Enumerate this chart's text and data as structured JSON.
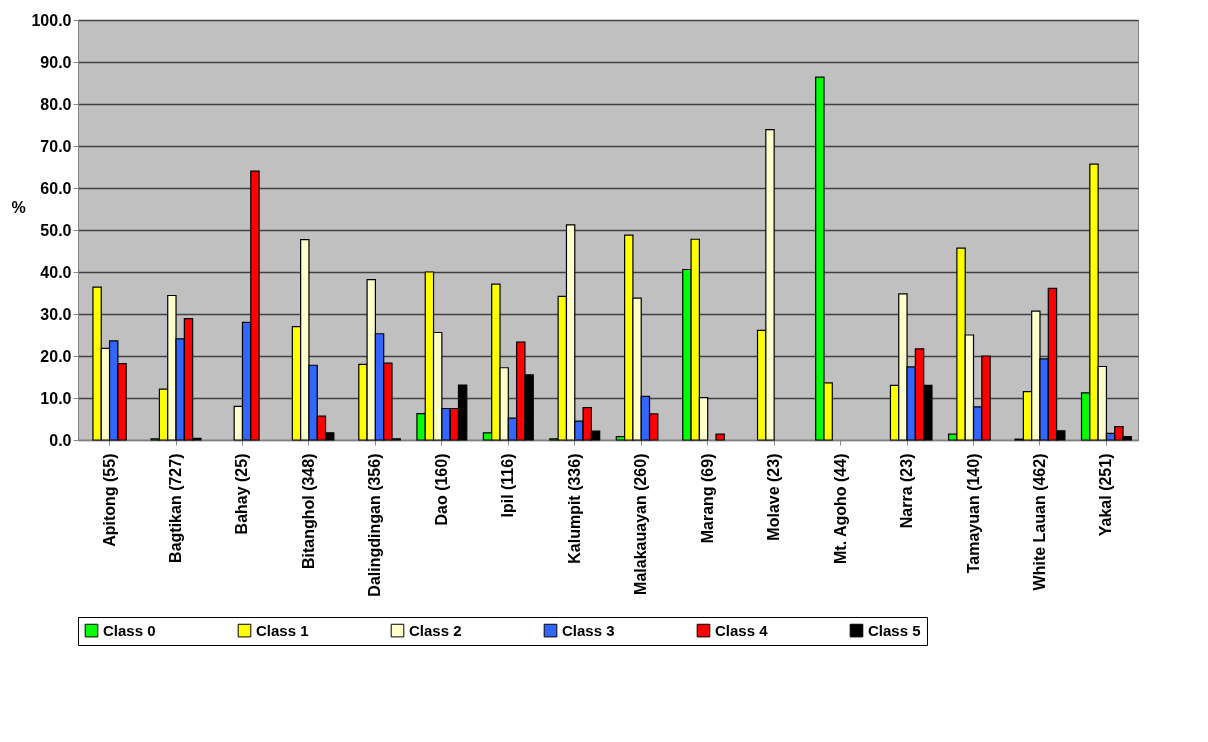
{
  "chart_data": {
    "type": "bar",
    "ylabel": "%",
    "categories": [
      "Apitong (55)",
      "Bagtikan (727)",
      "Bahay (25)",
      "Bitanghol (348)",
      "Dalingdingan (356)",
      "Dao (160)",
      "Ipil (116)",
      "Kalumpit (336)",
      "Malakauayan (260)",
      "Marang (69)",
      "Molave (23)",
      "Mt. Agoho (44)",
      "Narra (23)",
      "Tamayuan (140)",
      "White Lauan (462)",
      "Yakal (251)"
    ],
    "series": [
      {
        "name": "Class 0",
        "color": "#00ff00",
        "values": [
          null,
          0.3,
          null,
          null,
          null,
          6.3,
          1.7,
          0.3,
          0.8,
          40.6,
          null,
          86.4,
          null,
          1.4,
          0.2,
          11.2
        ]
      },
      {
        "name": "Class 1",
        "color": "#ffff00",
        "values": [
          36.4,
          12.1,
          null,
          27.0,
          18.0,
          40.0,
          37.1,
          34.2,
          48.8,
          47.8,
          26.1,
          13.6,
          13.0,
          45.7,
          11.5,
          65.7
        ]
      },
      {
        "name": "Class 2",
        "color": "#ffffcc",
        "values": [
          21.8,
          34.4,
          8.0,
          47.7,
          38.2,
          25.6,
          17.2,
          51.2,
          33.8,
          10.1,
          73.9,
          null,
          34.8,
          25.0,
          30.7,
          17.5
        ]
      },
      {
        "name": "Class 3",
        "color": "#3366ff",
        "values": [
          23.6,
          24.1,
          28.0,
          17.8,
          25.3,
          7.5,
          5.2,
          4.5,
          10.4,
          null,
          null,
          null,
          17.4,
          7.9,
          19.3,
          1.6
        ]
      },
      {
        "name": "Class 4",
        "color": "#ff0000",
        "values": [
          18.2,
          28.9,
          64.0,
          5.7,
          18.3,
          7.5,
          23.3,
          7.7,
          6.2,
          1.4,
          null,
          null,
          21.7,
          20.0,
          36.1,
          3.2
        ]
      },
      {
        "name": "Class 5",
        "color": "#000000",
        "values": [
          null,
          0.4,
          null,
          1.7,
          0.3,
          13.1,
          15.5,
          2.1,
          null,
          null,
          null,
          null,
          13.0,
          null,
          2.2,
          0.8
        ]
      }
    ],
    "ylim": [
      0,
      100
    ],
    "yticks": [
      {
        "value": 0,
        "label": "0.0"
      },
      {
        "value": 10,
        "label": "10.0"
      },
      {
        "value": 20,
        "label": "20.0"
      },
      {
        "value": 30,
        "label": "30.0"
      },
      {
        "value": 40,
        "label": "40.0"
      },
      {
        "value": 50,
        "label": "50.0"
      },
      {
        "value": 60,
        "label": "60.0"
      },
      {
        "value": 70,
        "label": "70.0"
      },
      {
        "value": 80,
        "label": "80.0"
      },
      {
        "value": 90,
        "label": "90.0"
      },
      {
        "value": 100,
        "label": "100.0"
      }
    ],
    "grid": "y",
    "legend": "bottom"
  }
}
